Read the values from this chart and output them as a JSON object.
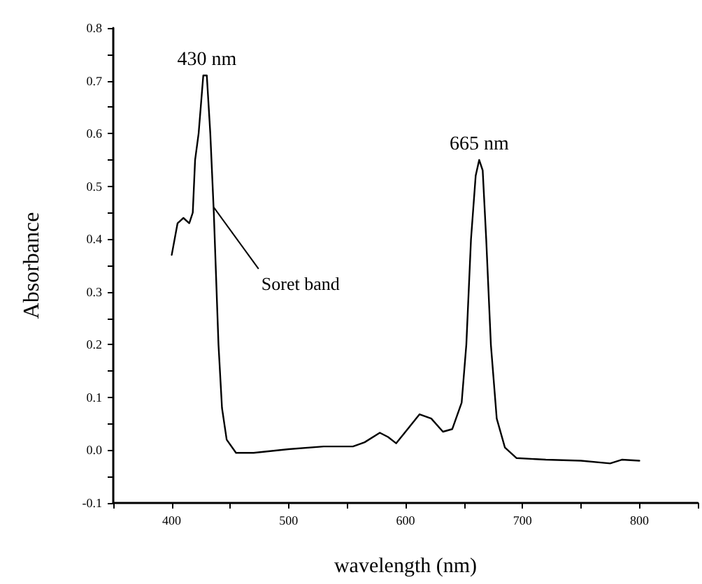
{
  "chart_data": {
    "type": "line",
    "xlabel": "wavelength (nm)",
    "ylabel": "Absorbance",
    "x": [
      400,
      405,
      410,
      415,
      418,
      420,
      423,
      427,
      430,
      433,
      436,
      440,
      443,
      447,
      455,
      470,
      500,
      530,
      555,
      565,
      578,
      585,
      592,
      600,
      612,
      622,
      632,
      640,
      648,
      652,
      656,
      660,
      663,
      666,
      669,
      673,
      678,
      685,
      695,
      720,
      750,
      775,
      785,
      800
    ],
    "series": [
      {
        "color": "#000000",
        "values": [
          0.37,
          0.43,
          0.44,
          0.43,
          0.45,
          0.55,
          0.6,
          0.71,
          0.71,
          0.6,
          0.45,
          0.2,
          0.08,
          0.02,
          -0.005,
          -0.005,
          0.002,
          0.007,
          0.007,
          0.015,
          0.033,
          0.025,
          0.013,
          0.035,
          0.068,
          0.06,
          0.035,
          0.04,
          0.09,
          0.2,
          0.4,
          0.52,
          0.55,
          0.53,
          0.4,
          0.2,
          0.06,
          0.005,
          -0.015,
          -0.018,
          -0.02,
          -0.025,
          -0.018,
          -0.02
        ]
      }
    ],
    "xlim": [
      350,
      850
    ],
    "xticks": [
      {
        "value": 350,
        "label": null
      },
      400,
      {
        "value": 450,
        "label": null
      },
      500,
      {
        "value": 550,
        "label": null
      },
      600,
      {
        "value": 650,
        "label": null
      },
      700,
      {
        "value": 750,
        "label": null
      },
      800,
      {
        "value": 850,
        "label": null
      }
    ],
    "ylim": [
      -0.1,
      0.8
    ],
    "yticks": [
      {
        "value": -0.1,
        "label": "-0.1"
      },
      {
        "value": -0.05,
        "label": null
      },
      {
        "value": 0,
        "label": "0.0"
      },
      {
        "value": 0.05,
        "label": null
      },
      {
        "value": 0.1,
        "label": "0.1"
      },
      {
        "value": 0.15,
        "label": null
      },
      {
        "value": 0.2,
        "label": "0.2"
      },
      {
        "value": 0.25,
        "label": null
      },
      {
        "value": 0.3,
        "label": "0.3"
      },
      {
        "value": 0.35,
        "label": null
      },
      {
        "value": 0.4,
        "label": "0.4"
      },
      {
        "value": 0.45,
        "label": null
      },
      {
        "value": 0.5,
        "label": "0.5"
      },
      {
        "value": 0.55,
        "label": null
      },
      {
        "value": 0.6,
        "label": "0.6"
      },
      {
        "value": 0.65,
        "label": null
      },
      {
        "value": 0.7,
        "label": "0.7"
      },
      {
        "value": 0.75,
        "label": null
      },
      {
        "value": 0.8,
        "label": "0.8"
      }
    ],
    "annotations": [
      {
        "text": "430 nm",
        "x": 430,
        "y": 0.71
      },
      {
        "text": "665 nm",
        "x": 663,
        "y": 0.55
      },
      {
        "text": "Soret band",
        "x": 436,
        "y": 0.46
      }
    ],
    "grid": false,
    "marker": "none",
    "line_style": "solid"
  }
}
